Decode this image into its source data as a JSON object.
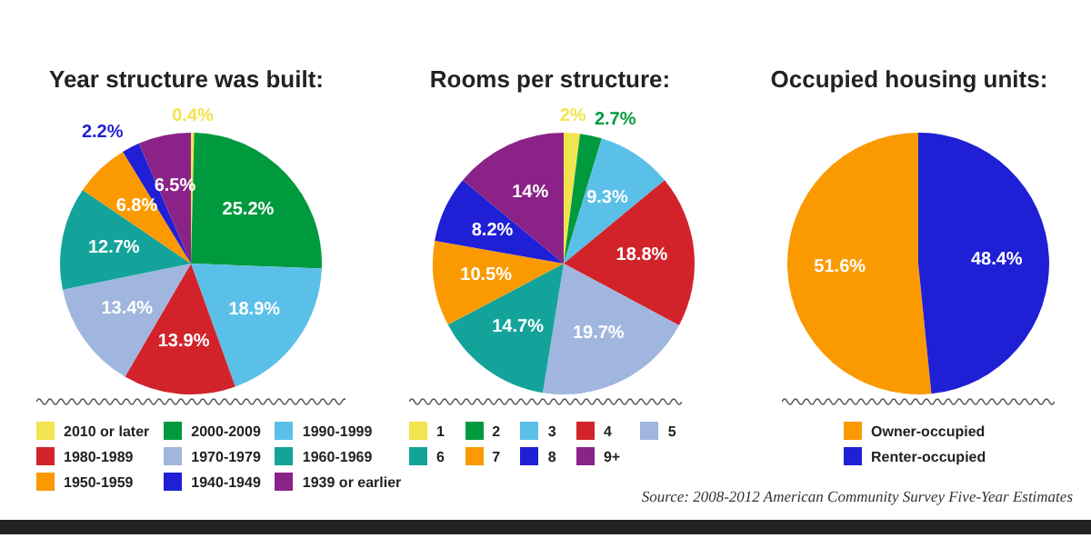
{
  "chart_data": [
    {
      "type": "pie",
      "title": "Year structure was built:",
      "categories": [
        "2010 or later",
        "2000-2009",
        "1990-1999",
        "1980-1989",
        "1970-1979",
        "1960-1969",
        "1950-1959",
        "1940-1949",
        "1939 or earlier"
      ],
      "values": [
        0.4,
        25.2,
        18.9,
        13.9,
        13.4,
        12.7,
        6.8,
        2.2,
        6.5
      ],
      "value_labels": [
        "0.4%",
        "25.2%",
        "18.9%",
        "13.9%",
        "13.4%",
        "12.7%",
        "6.8%",
        "2.2%",
        "6.5%"
      ],
      "colors": [
        "#f2e44e",
        "#009a3e",
        "#5bc0e8",
        "#d2232a",
        "#a0b6de",
        "#13a39a",
        "#fb9a00",
        "#1f1fd6",
        "#8a2287"
      ],
      "legend": "bottom"
    },
    {
      "type": "pie",
      "title": "Rooms per structure:",
      "categories": [
        "1",
        "2",
        "3",
        "4",
        "5",
        "6",
        "7",
        "8",
        "9+"
      ],
      "values": [
        2,
        2.7,
        9.3,
        18.8,
        19.7,
        14.7,
        10.5,
        8.2,
        14
      ],
      "value_labels": [
        "2%",
        "2.7%",
        "9.3%",
        "18.8%",
        "19.7%",
        "14.7%",
        "10.5%",
        "8.2%",
        "14%"
      ],
      "colors": [
        "#f2e44e",
        "#009a3e",
        "#5bc0e8",
        "#d2232a",
        "#a0b6de",
        "#13a39a",
        "#fb9a00",
        "#1f1fd6",
        "#8a2287"
      ],
      "legend": "bottom"
    },
    {
      "type": "pie",
      "title": "Occupied housing units:",
      "categories": [
        "Owner-occupied",
        "Renter-occupied"
      ],
      "values": [
        51.6,
        48.4
      ],
      "value_labels": [
        "51.6%",
        "48.4%"
      ],
      "colors": [
        "#fb9a00",
        "#1f1fd6"
      ],
      "legend": "bottom",
      "annotations": [
        "Source: 2008-2012 American Community Survey Five-Year Estimates"
      ]
    }
  ]
}
